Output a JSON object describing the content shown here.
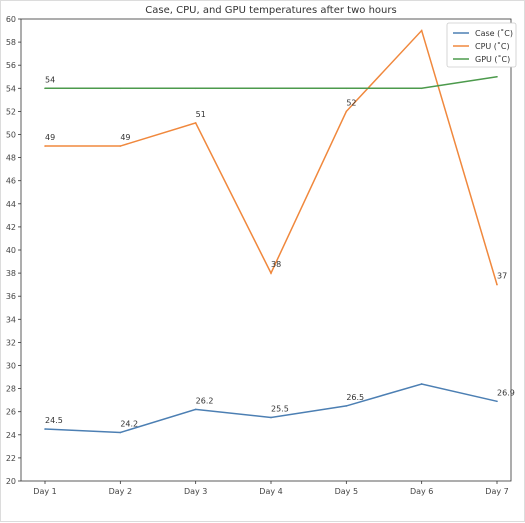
{
  "chart_data": {
    "type": "line",
    "title": "Case, CPU, and GPU temperatures after two hours",
    "xlabel": "",
    "ylabel": "",
    "categories": [
      "Day 1",
      "Day 2",
      "Day 3",
      "Day 4",
      "Day 5",
      "Day 6",
      "Day 7"
    ],
    "ylim": [
      20,
      60
    ],
    "yticks": [
      20,
      22,
      24,
      26,
      28,
      30,
      32,
      34,
      36,
      38,
      40,
      42,
      44,
      46,
      48,
      50,
      52,
      54,
      56,
      58,
      60
    ],
    "grid": false,
    "legend_position": "top-right",
    "series": [
      {
        "name": "Case (˚C)",
        "color": "#4c7fb3",
        "values": [
          24.5,
          24.2,
          26.2,
          25.5,
          26.5,
          28.4,
          26.9
        ],
        "labels": [
          "24.5",
          "24.2",
          "26.2",
          "25.5",
          "26.5",
          "",
          "26.9"
        ]
      },
      {
        "name": "CPU (˚C)",
        "color": "#f0883d",
        "values": [
          49,
          49,
          51,
          38,
          52,
          59,
          37
        ],
        "labels": [
          "49",
          "49",
          "51",
          "38",
          "52",
          "",
          "37"
        ]
      },
      {
        "name": "GPU (˚C)",
        "color": "#4c9a4c",
        "values": [
          54,
          54,
          54,
          54,
          54,
          54,
          55
        ],
        "labels": [
          "54",
          "",
          "",
          "",
          "",
          "",
          ""
        ]
      }
    ]
  }
}
